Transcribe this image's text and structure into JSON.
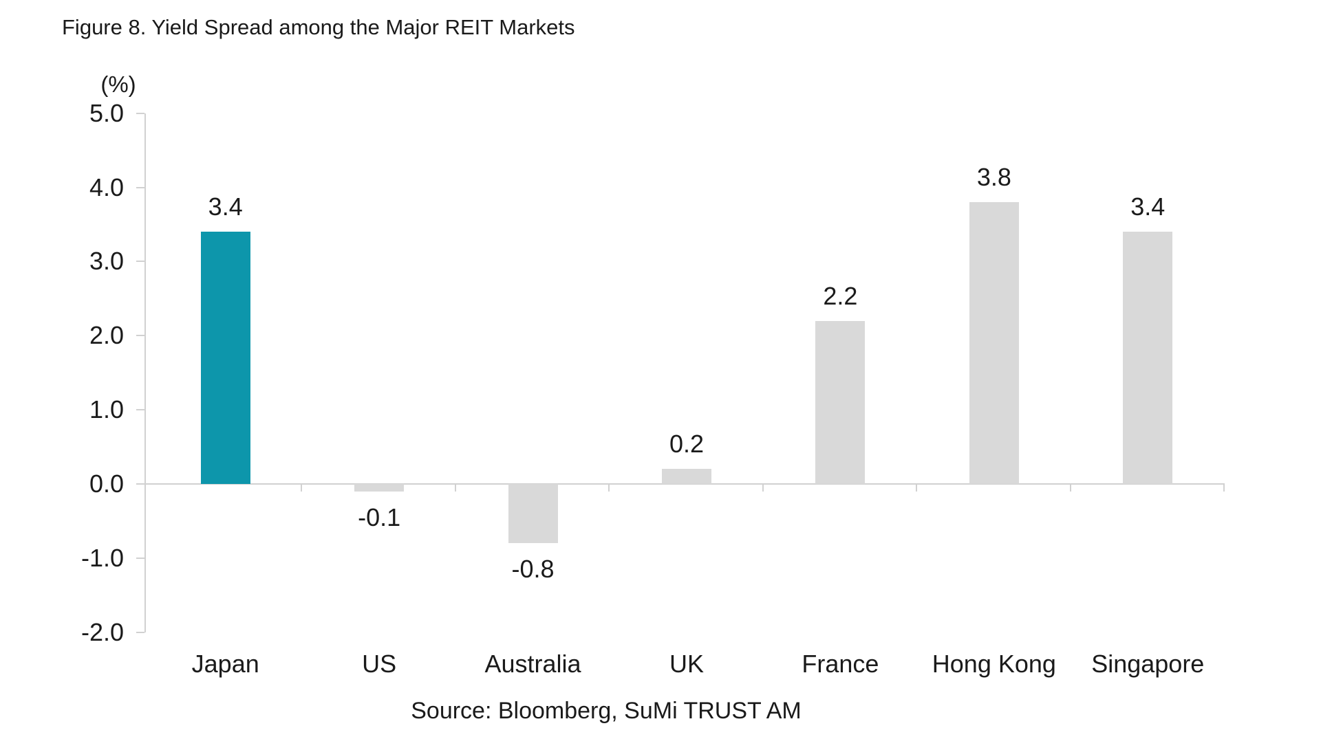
{
  "figure": {
    "title": "Figure 8. Yield Spread among the Major REIT Markets",
    "source": "Source: Bloomberg, SuMi TRUST AM"
  },
  "chart_data": {
    "type": "bar",
    "title": "Figure 8. Yield Spread among the Major REIT Markets",
    "unit_label": "(%)",
    "ylabel": "(%)",
    "xlabel": "",
    "categories": [
      "Japan",
      "US",
      "Australia",
      "UK",
      "France",
      "Hong Kong",
      "Singapore"
    ],
    "values": [
      3.4,
      -0.1,
      -0.8,
      0.2,
      2.2,
      3.8,
      3.4
    ],
    "value_labels": [
      "3.4",
      "-0.1",
      "-0.8",
      "0.2",
      "2.2",
      "3.8",
      "3.4"
    ],
    "highlight_index": 0,
    "highlight_color": "#0d96ab",
    "bar_color": "#d9d9d9",
    "axis_color": "#d1d1d1",
    "text_color": "#1a1a1a",
    "ylim": [
      -2.0,
      5.0
    ],
    "ytick_values": [
      5,
      4,
      3,
      2,
      1,
      0,
      -1,
      -2
    ],
    "ytick_labels": [
      "5.0",
      "4.0",
      "3.0",
      "2.0",
      "1.0",
      "0.0",
      "-1.0",
      "-2.0"
    ],
    "grid": false,
    "legend": false,
    "source": "Source: Bloomberg, SuMi TRUST AM"
  }
}
